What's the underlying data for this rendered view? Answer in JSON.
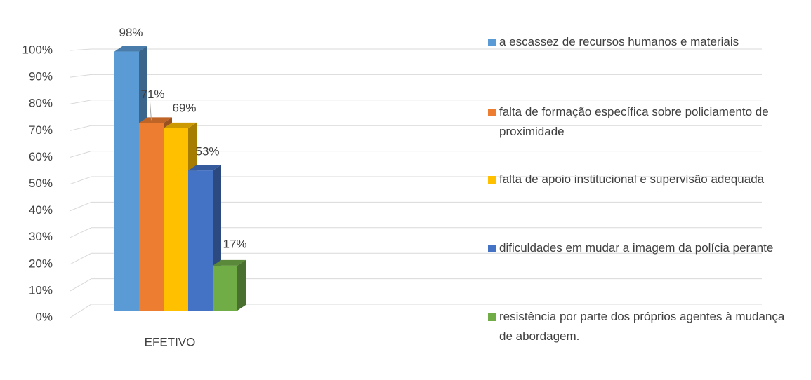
{
  "chart_data": {
    "type": "bar3d",
    "categories": [
      "EFETIVO"
    ],
    "series": [
      {
        "name": "a escassez de recursos humanos e materiais",
        "color": "#5b9bd5",
        "values": [
          98
        ],
        "value_labels": [
          "98%"
        ]
      },
      {
        "name": "falta de formação específica sobre policiamento de proximidade",
        "color": "#ed7d31",
        "values": [
          71
        ],
        "value_labels": [
          "71%"
        ]
      },
      {
        "name": "falta de apoio institucional e supervisão adequada",
        "color": "#ffc000",
        "values": [
          69
        ],
        "value_labels": [
          "69%"
        ]
      },
      {
        "name": "dificuldades em mudar a imagem da polícia perante",
        "color": "#4472c4",
        "values": [
          53
        ],
        "value_labels": [
          "53%"
        ]
      },
      {
        "name": "resistência por parte dos próprios agentes à mudança de abordagem.",
        "color": "#70ad47",
        "values": [
          17
        ],
        "value_labels": [
          "17%"
        ]
      }
    ],
    "ylim": [
      0,
      100
    ],
    "yticks": [
      {
        "value": 0,
        "label": "0%"
      },
      {
        "value": 10,
        "label": "10%"
      },
      {
        "value": 20,
        "label": "20%"
      },
      {
        "value": 30,
        "label": "30%"
      },
      {
        "value": 40,
        "label": "40%"
      },
      {
        "value": 50,
        "label": "50%"
      },
      {
        "value": 60,
        "label": "60%"
      },
      {
        "value": 70,
        "label": "70%"
      },
      {
        "value": 80,
        "label": "80%"
      },
      {
        "value": 90,
        "label": "90%"
      },
      {
        "value": 100,
        "label": "100%"
      }
    ],
    "grid": true,
    "legend": "right"
  }
}
